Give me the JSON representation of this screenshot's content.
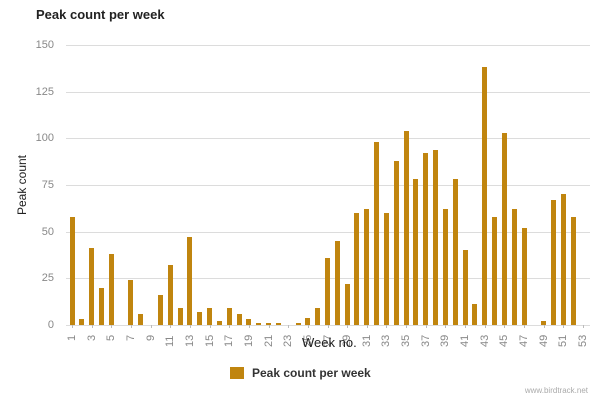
{
  "chart_data": {
    "type": "bar",
    "title": "Peak count per week",
    "xlabel": "Week no.",
    "ylabel": "Peak count",
    "ylim": [
      0,
      150
    ],
    "yticks": [
      0,
      25,
      50,
      75,
      100,
      125,
      150
    ],
    "grid": true,
    "legend_position": "bottom",
    "legend": [
      "Peak count per week"
    ],
    "bar_color": "#c0850f",
    "xtick_labels": [
      "1",
      "3",
      "5",
      "7",
      "9",
      "11",
      "13",
      "15",
      "17",
      "19",
      "21",
      "23",
      "25",
      "27",
      "29",
      "31",
      "33",
      "35",
      "37",
      "39",
      "41",
      "43",
      "45",
      "47",
      "49",
      "51",
      "53"
    ],
    "categories": [
      1,
      2,
      3,
      4,
      5,
      6,
      7,
      8,
      9,
      10,
      11,
      12,
      13,
      14,
      15,
      16,
      17,
      18,
      19,
      20,
      21,
      22,
      23,
      24,
      25,
      26,
      27,
      28,
      29,
      30,
      31,
      32,
      33,
      34,
      35,
      36,
      37,
      38,
      39,
      40,
      41,
      42,
      43,
      44,
      45,
      46,
      47,
      48,
      49,
      50,
      51,
      52,
      53
    ],
    "series": [
      {
        "name": "Peak count per week",
        "values": [
          58,
          3,
          41,
          20,
          38,
          0,
          24,
          6,
          0,
          16,
          32,
          9,
          47,
          7,
          9,
          2,
          9,
          6,
          3,
          1,
          1,
          1,
          0,
          1,
          4,
          9,
          36,
          45,
          22,
          60,
          62,
          98,
          60,
          88,
          104,
          78,
          92,
          94,
          62,
          78,
          40,
          11,
          138,
          58,
          103,
          62,
          52,
          0,
          2,
          67,
          70,
          58,
          0
        ]
      }
    ]
  },
  "credit": "www.birdtrack.net"
}
